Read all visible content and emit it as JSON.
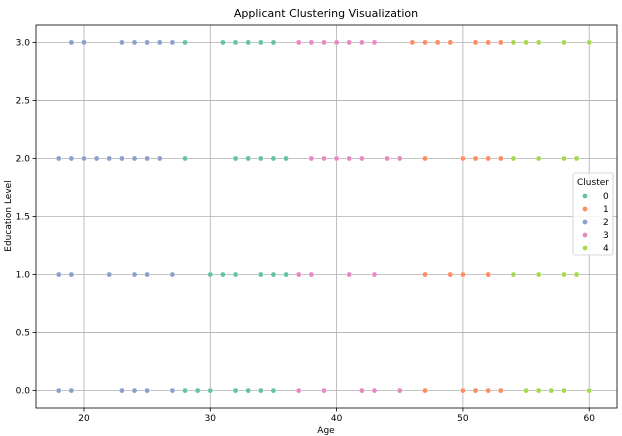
{
  "chart_data": {
    "type": "scatter",
    "title": "Applicant Clustering Visualization",
    "xlabel": "Age",
    "ylabel": "Education Level",
    "xlim": [
      16.2,
      62.2
    ],
    "ylim": [
      -0.15,
      3.15
    ],
    "xticks": [
      20,
      30,
      40,
      50,
      60
    ],
    "yticks": [
      0.0,
      0.5,
      1.0,
      1.5,
      2.0,
      2.5,
      3.0
    ],
    "xtick_labels": [
      "20",
      "30",
      "40",
      "50",
      "60"
    ],
    "ytick_labels": [
      "0.0",
      "0.5",
      "1.0",
      "1.5",
      "2.0",
      "2.5",
      "3.0"
    ],
    "grid": true,
    "legend": {
      "title": "Cluster",
      "position": "right"
    },
    "series": [
      {
        "name": "0",
        "color": "#66c2a5",
        "points": [
          [
            28,
            3
          ],
          [
            31,
            3
          ],
          [
            32,
            3
          ],
          [
            33,
            3
          ],
          [
            34,
            3
          ],
          [
            35,
            3
          ],
          [
            28,
            2
          ],
          [
            32,
            2
          ],
          [
            33,
            2
          ],
          [
            34,
            2
          ],
          [
            35,
            2
          ],
          [
            36,
            2
          ],
          [
            30,
            1
          ],
          [
            31,
            1
          ],
          [
            32,
            1
          ],
          [
            34,
            1
          ],
          [
            35,
            1
          ],
          [
            36,
            1
          ],
          [
            28,
            0
          ],
          [
            29,
            0
          ],
          [
            30,
            0
          ],
          [
            32,
            0
          ],
          [
            33,
            0
          ],
          [
            34,
            0
          ],
          [
            35,
            0
          ]
        ]
      },
      {
        "name": "1",
        "color": "#fc8d62",
        "points": [
          [
            46,
            3
          ],
          [
            47,
            3
          ],
          [
            48,
            3
          ],
          [
            49,
            3
          ],
          [
            51,
            3
          ],
          [
            52,
            3
          ],
          [
            53,
            3
          ],
          [
            47,
            2
          ],
          [
            50,
            2
          ],
          [
            51,
            2
          ],
          [
            52,
            2
          ],
          [
            53,
            2
          ],
          [
            47,
            1
          ],
          [
            49,
            1
          ],
          [
            50,
            1
          ],
          [
            52,
            1
          ],
          [
            47,
            0
          ],
          [
            50,
            0
          ],
          [
            51,
            0
          ],
          [
            52,
            0
          ],
          [
            53,
            0
          ]
        ]
      },
      {
        "name": "2",
        "color": "#8da0cb",
        "points": [
          [
            19,
            3
          ],
          [
            20,
            3
          ],
          [
            23,
            3
          ],
          [
            24,
            3
          ],
          [
            25,
            3
          ],
          [
            26,
            3
          ],
          [
            27,
            3
          ],
          [
            18,
            2
          ],
          [
            19,
            2
          ],
          [
            20,
            2
          ],
          [
            21,
            2
          ],
          [
            22,
            2
          ],
          [
            23,
            2
          ],
          [
            24,
            2
          ],
          [
            25,
            2
          ],
          [
            26,
            2
          ],
          [
            18,
            1
          ],
          [
            19,
            1
          ],
          [
            22,
            1
          ],
          [
            24,
            1
          ],
          [
            25,
            1
          ],
          [
            27,
            1
          ],
          [
            18,
            0
          ],
          [
            19,
            0
          ],
          [
            23,
            0
          ],
          [
            24,
            0
          ],
          [
            25,
            0
          ],
          [
            27,
            0
          ]
        ]
      },
      {
        "name": "3",
        "color": "#e78ac3",
        "points": [
          [
            37,
            3
          ],
          [
            38,
            3
          ],
          [
            39,
            3
          ],
          [
            40,
            3
          ],
          [
            41,
            3
          ],
          [
            42,
            3
          ],
          [
            43,
            3
          ],
          [
            38,
            2
          ],
          [
            39,
            2
          ],
          [
            40,
            2
          ],
          [
            41,
            2
          ],
          [
            42,
            2
          ],
          [
            44,
            2
          ],
          [
            45,
            2
          ],
          [
            37,
            1
          ],
          [
            38,
            1
          ],
          [
            41,
            1
          ],
          [
            43,
            1
          ],
          [
            37,
            0
          ],
          [
            39,
            0
          ],
          [
            42,
            0
          ],
          [
            43,
            0
          ],
          [
            45,
            0
          ]
        ]
      },
      {
        "name": "4",
        "color": "#a6d854",
        "points": [
          [
            54,
            3
          ],
          [
            55,
            3
          ],
          [
            56,
            3
          ],
          [
            58,
            3
          ],
          [
            60,
            3
          ],
          [
            54,
            2
          ],
          [
            56,
            2
          ],
          [
            58,
            2
          ],
          [
            59,
            2
          ],
          [
            54,
            1
          ],
          [
            56,
            1
          ],
          [
            58,
            1
          ],
          [
            59,
            1
          ],
          [
            55,
            0
          ],
          [
            56,
            0
          ],
          [
            57,
            0
          ],
          [
            58,
            0
          ],
          [
            60,
            0
          ]
        ]
      }
    ]
  }
}
